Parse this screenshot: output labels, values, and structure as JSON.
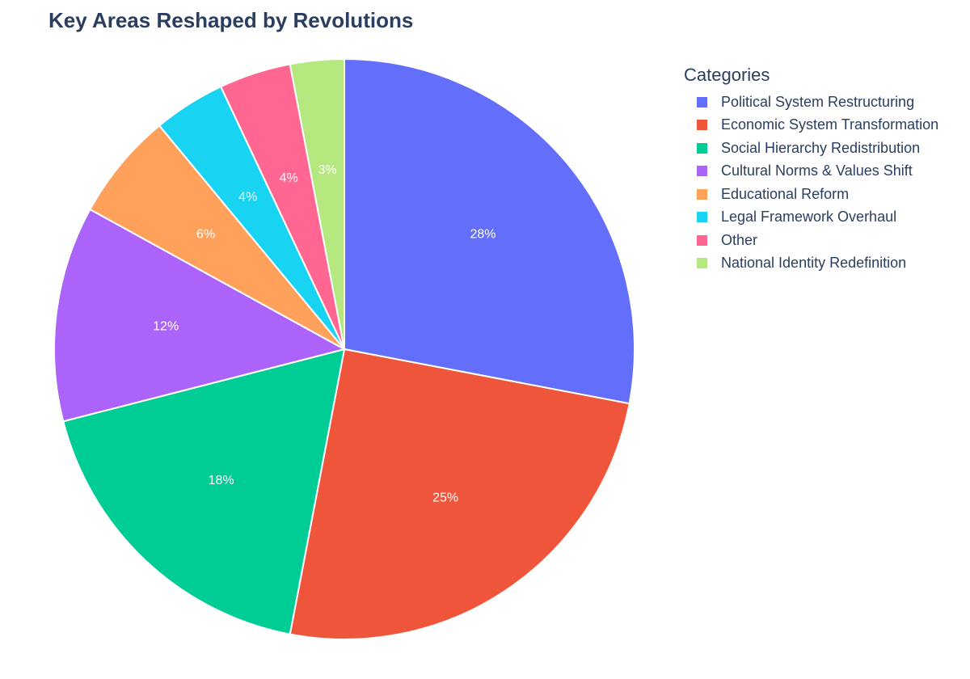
{
  "chart_data": {
    "type": "pie",
    "title": "Key Areas Reshaped by Revolutions",
    "legend_title": "Categories",
    "legend_position": "right",
    "slices": [
      {
        "label": "Political System Restructuring",
        "value": 28,
        "text": "28%",
        "color": "#636efa"
      },
      {
        "label": "Economic System Transformation",
        "value": 25,
        "text": "25%",
        "color": "#EF553B"
      },
      {
        "label": "Social Hierarchy Redistribution",
        "value": 18,
        "text": "18%",
        "color": "#00cc96"
      },
      {
        "label": "Cultural Norms & Values Shift",
        "value": 12,
        "text": "12%",
        "color": "#ab63fa"
      },
      {
        "label": "Educational Reform",
        "value": 6,
        "text": "6%",
        "color": "#FFA15A"
      },
      {
        "label": "Legal Framework Overhaul",
        "value": 4,
        "text": "4%",
        "color": "#19d3f3"
      },
      {
        "label": "Other",
        "value": 4,
        "text": "4%",
        "color": "#FF6692"
      },
      {
        "label": "National Identity Redefinition",
        "value": 3,
        "text": "3%",
        "color": "#B6E880"
      }
    ]
  }
}
